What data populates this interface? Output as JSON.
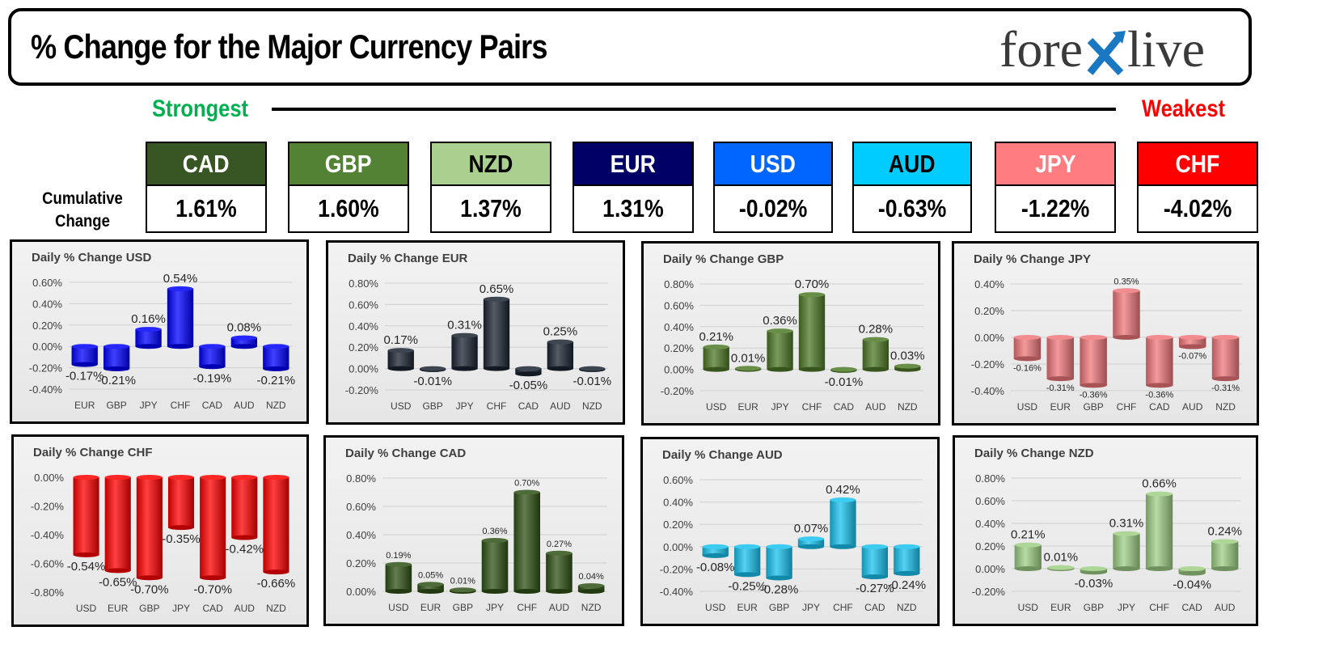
{
  "header": {
    "title": "% Change for the Major Currency Pairs",
    "logo_text": {
      "prefix": "fore",
      "suffix": "live"
    }
  },
  "ranking": {
    "strongest_label": "Strongest",
    "weakest_label": "Weakest",
    "strongest_color": "#00b050",
    "weakest_color": "#ff0000",
    "cumulative_label_line1": "Cumulative",
    "cumulative_label_line2": "Change",
    "currencies": [
      {
        "code": "CAD",
        "value": "1.61%",
        "bg": "#375623",
        "fg": "#ffffff"
      },
      {
        "code": "GBP",
        "value": "1.60%",
        "bg": "#548235",
        "fg": "#ffffff"
      },
      {
        "code": "NZD",
        "value": "1.37%",
        "bg": "#a9d08e",
        "fg": "#000000"
      },
      {
        "code": "EUR",
        "value": "1.31%",
        "bg": "#000066",
        "fg": "#ffffff"
      },
      {
        "code": "USD",
        "value": "-0.02%",
        "bg": "#0066ff",
        "fg": "#ffffff"
      },
      {
        "code": "AUD",
        "value": "-0.63%",
        "bg": "#00ccff",
        "fg": "#000000"
      },
      {
        "code": "JPY",
        "value": "-1.22%",
        "bg": "#ff7c80",
        "fg": "#ffffff"
      },
      {
        "code": "CHF",
        "value": "-4.02%",
        "bg": "#ff0000",
        "fg": "#ffffff"
      }
    ]
  },
  "chart_data": [
    {
      "type": "bar",
      "title": "Daily % Change USD",
      "categories": [
        "EUR",
        "GBP",
        "JPY",
        "CHF",
        "CAD",
        "AUD",
        "NZD"
      ],
      "values": [
        -0.17,
        -0.21,
        0.16,
        0.54,
        -0.19,
        0.08,
        -0.21
      ],
      "labels": [
        "-0.17%",
        "-0.21%",
        "0.16%",
        "0.54%",
        "-0.19%",
        "0.08%",
        "-0.21%"
      ],
      "yticks": [
        "0.60%",
        "0.40%",
        "0.20%",
        "0.00%",
        "-0.20%",
        "-0.40%"
      ],
      "ylim": [
        -0.4,
        0.6
      ],
      "color": "#0000ff",
      "grid": true
    },
    {
      "type": "bar",
      "title": "Daily % Change EUR",
      "categories": [
        "USD",
        "GBP",
        "JPY",
        "CHF",
        "CAD",
        "AUD",
        "NZD"
      ],
      "values": [
        0.17,
        -0.01,
        0.31,
        0.65,
        -0.05,
        0.25,
        -0.01
      ],
      "labels": [
        "0.17%",
        "-0.01%",
        "0.31%",
        "0.65%",
        "-0.05%",
        "0.25%",
        "-0.01%"
      ],
      "yticks": [
        "0.80%",
        "0.60%",
        "0.40%",
        "0.20%",
        "0.00%",
        "-0.20%"
      ],
      "ylim": [
        -0.2,
        0.8
      ],
      "color": "#1b2432",
      "grid": true
    },
    {
      "type": "bar",
      "title": "Daily % Change GBP",
      "categories": [
        "USD",
        "EUR",
        "JPY",
        "CHF",
        "CAD",
        "AUD",
        "NZD"
      ],
      "values": [
        0.21,
        0.01,
        0.36,
        0.7,
        -0.01,
        0.28,
        0.03
      ],
      "labels": [
        "0.21%",
        "0.01%",
        "0.36%",
        "0.70%",
        "-0.01%",
        "0.28%",
        "0.03%"
      ],
      "yticks": [
        "0.80%",
        "0.60%",
        "0.40%",
        "0.20%",
        "0.00%",
        "-0.20%"
      ],
      "ylim": [
        -0.2,
        0.8
      ],
      "color": "#4e7a28",
      "grid": true
    },
    {
      "type": "bar",
      "title": "Daily % Change JPY",
      "categories": [
        "USD",
        "EUR",
        "GBP",
        "CHF",
        "CAD",
        "AUD",
        "NZD"
      ],
      "values": [
        -0.16,
        -0.31,
        -0.36,
        0.35,
        -0.36,
        -0.07,
        -0.31
      ],
      "labels": [
        "-0.16%",
        "-0.31%",
        "-0.36%",
        "0.35%",
        "-0.36%",
        "-0.07%",
        "-0.31%"
      ],
      "yticks": [
        "0.40%",
        "0.20%",
        "0.00%",
        "-0.20%",
        "-0.40%"
      ],
      "ylim": [
        -0.4,
        0.4
      ],
      "color": "#f0787c",
      "grid": true
    },
    {
      "type": "bar",
      "title": "Daily % Change CHF",
      "categories": [
        "USD",
        "EUR",
        "GBP",
        "JPY",
        "CAD",
        "AUD",
        "NZD"
      ],
      "values": [
        -0.54,
        -0.65,
        -0.7,
        -0.35,
        -0.7,
        -0.42,
        -0.66
      ],
      "labels": [
        "-0.54%",
        "-0.65%",
        "-0.70%",
        "-0.35%",
        "-0.70%",
        "-0.42%",
        "-0.66%"
      ],
      "yticks": [
        "0.00%",
        "-0.20%",
        "-0.40%",
        "-0.60%",
        "-0.80%"
      ],
      "ylim": [
        -0.8,
        0.0
      ],
      "color": "#ff0000",
      "grid": false
    },
    {
      "type": "bar",
      "title": "Daily % Change CAD",
      "categories": [
        "USD",
        "EUR",
        "GBP",
        "JPY",
        "CHF",
        "AUD",
        "NZD"
      ],
      "values": [
        0.19,
        0.05,
        0.01,
        0.36,
        0.7,
        0.27,
        0.04
      ],
      "labels": [
        "0.19%",
        "0.05%",
        "0.01%",
        "0.36%",
        "0.70%",
        "0.27%",
        "0.04%"
      ],
      "yticks": [
        "0.80%",
        "0.60%",
        "0.40%",
        "0.20%",
        "0.00%"
      ],
      "ylim": [
        0.0,
        0.8
      ],
      "color": "#2f5216",
      "grid": true
    },
    {
      "type": "bar",
      "title": "Daily % Change AUD",
      "categories": [
        "USD",
        "EUR",
        "GBP",
        "JPY",
        "CHF",
        "CAD",
        "NZD"
      ],
      "values": [
        -0.08,
        -0.25,
        -0.28,
        0.07,
        0.42,
        -0.27,
        -0.24
      ],
      "labels": [
        "-0.08%",
        "-0.25%",
        "-0.28%",
        "0.07%",
        "0.42%",
        "-0.27%",
        "-0.24%"
      ],
      "yticks": [
        "0.60%",
        "0.40%",
        "0.20%",
        "0.00%",
        "-0.20%",
        "-0.40%"
      ],
      "ylim": [
        -0.4,
        0.6
      ],
      "color": "#19c3f0",
      "grid": true
    },
    {
      "type": "bar",
      "title": "Daily % Change NZD",
      "categories": [
        "USD",
        "EUR",
        "GBP",
        "JPY",
        "CHF",
        "CAD",
        "AUD"
      ],
      "values": [
        0.21,
        0.01,
        -0.03,
        0.31,
        0.66,
        -0.04,
        0.24
      ],
      "labels": [
        "0.21%",
        "0.01%",
        "-0.03%",
        "0.31%",
        "0.66%",
        "-0.04%",
        "0.24%"
      ],
      "yticks": [
        "0.80%",
        "0.60%",
        "0.40%",
        "0.20%",
        "0.00%",
        "-0.20%"
      ],
      "ylim": [
        -0.2,
        0.8
      ],
      "color": "#9fcf85",
      "grid": true
    }
  ]
}
